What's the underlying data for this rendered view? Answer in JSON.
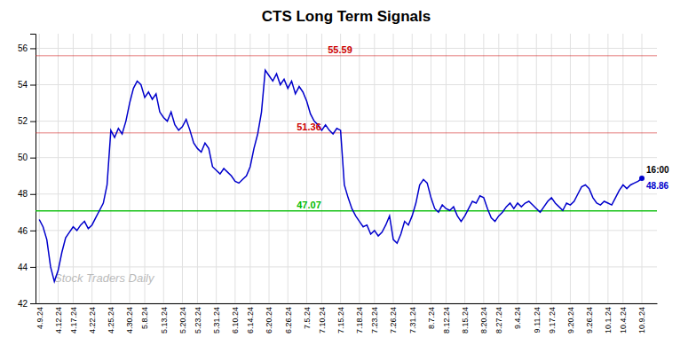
{
  "chart_data": {
    "type": "line",
    "title": "CTS Long Term Signals",
    "color": "#0000cc",
    "grid": true,
    "ylim": [
      42,
      56.8
    ],
    "yticks": [
      42,
      44,
      46,
      48,
      50,
      52,
      54,
      56
    ],
    "categories": [
      "4.9.24",
      null,
      null,
      null,
      null,
      "4.12.24",
      null,
      null,
      null,
      "4.17.24",
      null,
      null,
      null,
      null,
      "4.22.24",
      null,
      null,
      null,
      null,
      "4.25.24",
      null,
      null,
      null,
      null,
      "4.30.24",
      null,
      null,
      null,
      "5.8.24",
      null,
      null,
      null,
      null,
      "5.13.24",
      null,
      null,
      null,
      null,
      "5.20.24",
      null,
      null,
      null,
      "5.23.24",
      null,
      null,
      null,
      null,
      "5.31.24",
      null,
      null,
      null,
      null,
      "6.10.24",
      null,
      null,
      null,
      "6.14.24",
      null,
      null,
      null,
      null,
      "6.20.24",
      null,
      null,
      null,
      null,
      "6.26.24",
      null,
      null,
      null,
      null,
      "7.5.24",
      null,
      null,
      null,
      "7.10.24",
      null,
      null,
      null,
      null,
      "7.15.24",
      null,
      null,
      null,
      null,
      "7.18.24",
      null,
      null,
      null,
      "7.23.24",
      null,
      null,
      null,
      null,
      "7.26.24",
      null,
      null,
      null,
      null,
      "7.31.24",
      null,
      null,
      null,
      null,
      "8.7.24",
      null,
      null,
      null,
      "8.12.24",
      null,
      null,
      null,
      null,
      "8.15.24",
      null,
      null,
      null,
      null,
      "8.20.24",
      null,
      null,
      null,
      "8.27.24",
      null,
      null,
      null,
      null,
      "9.4.24",
      null,
      null,
      null,
      null,
      "9.11.24",
      null,
      null,
      null,
      "9.17.24",
      null,
      null,
      null,
      null,
      "9.20.24",
      null,
      null,
      null,
      null,
      "9.26.24",
      null,
      null,
      null,
      null,
      "10.1.24",
      null,
      null,
      null,
      "10.4.24",
      null,
      null,
      null,
      null,
      "10.9.24"
    ],
    "values": [
      46.6,
      46.2,
      45.5,
      44.0,
      43.2,
      43.8,
      44.8,
      45.6,
      45.9,
      46.2,
      46.0,
      46.3,
      46.5,
      46.1,
      46.3,
      46.7,
      47.1,
      47.5,
      48.5,
      51.5,
      51.1,
      51.6,
      51.3,
      52.0,
      53.0,
      53.8,
      54.2,
      54.0,
      53.3,
      53.6,
      53.2,
      53.5,
      52.5,
      52.2,
      52.0,
      52.5,
      51.8,
      51.5,
      51.7,
      52.1,
      51.5,
      50.8,
      50.5,
      50.3,
      50.8,
      50.5,
      49.5,
      49.3,
      49.1,
      49.4,
      49.2,
      49.0,
      48.7,
      48.6,
      48.8,
      49.0,
      49.5,
      50.5,
      51.3,
      52.5,
      54.8,
      54.5,
      54.2,
      54.6,
      54.0,
      54.3,
      53.8,
      54.2,
      53.5,
      53.9,
      53.6,
      53.1,
      52.4,
      52.0,
      51.8,
      51.5,
      51.8,
      51.5,
      51.3,
      51.6,
      51.5,
      48.5,
      47.8,
      47.2,
      46.8,
      46.5,
      46.2,
      46.3,
      45.8,
      46.0,
      45.7,
      45.9,
      46.3,
      46.8,
      45.5,
      45.3,
      45.8,
      46.5,
      46.3,
      46.8,
      47.5,
      48.5,
      48.8,
      48.6,
      47.8,
      47.2,
      47.0,
      47.4,
      47.2,
      47.1,
      47.3,
      46.8,
      46.5,
      46.8,
      47.2,
      47.6,
      47.5,
      47.9,
      47.8,
      47.2,
      46.7,
      46.5,
      46.8,
      47.0,
      47.3,
      47.5,
      47.2,
      47.5,
      47.3,
      47.5,
      47.6,
      47.4,
      47.2,
      47.0,
      47.3,
      47.6,
      47.8,
      47.5,
      47.3,
      47.1,
      47.5,
      47.4,
      47.6,
      48.0,
      48.4,
      48.5,
      48.3,
      47.8,
      47.5,
      47.4,
      47.6,
      47.5,
      47.4,
      47.8,
      48.2,
      48.5,
      48.3,
      48.5,
      48.6,
      48.7,
      48.86
    ],
    "reference_lines": [
      {
        "value": 55.59,
        "label": "55.59",
        "color": "#cc0000"
      },
      {
        "value": 51.36,
        "label": "51.36",
        "color": "#cc0000"
      },
      {
        "value": 47.07,
        "label": "47.07",
        "color": "#00bb00"
      }
    ],
    "annotations": [
      {
        "text": "16:00"
      },
      {
        "text": "48.86",
        "value": 48.86
      }
    ],
    "watermark": "Stock Traders Daily"
  }
}
